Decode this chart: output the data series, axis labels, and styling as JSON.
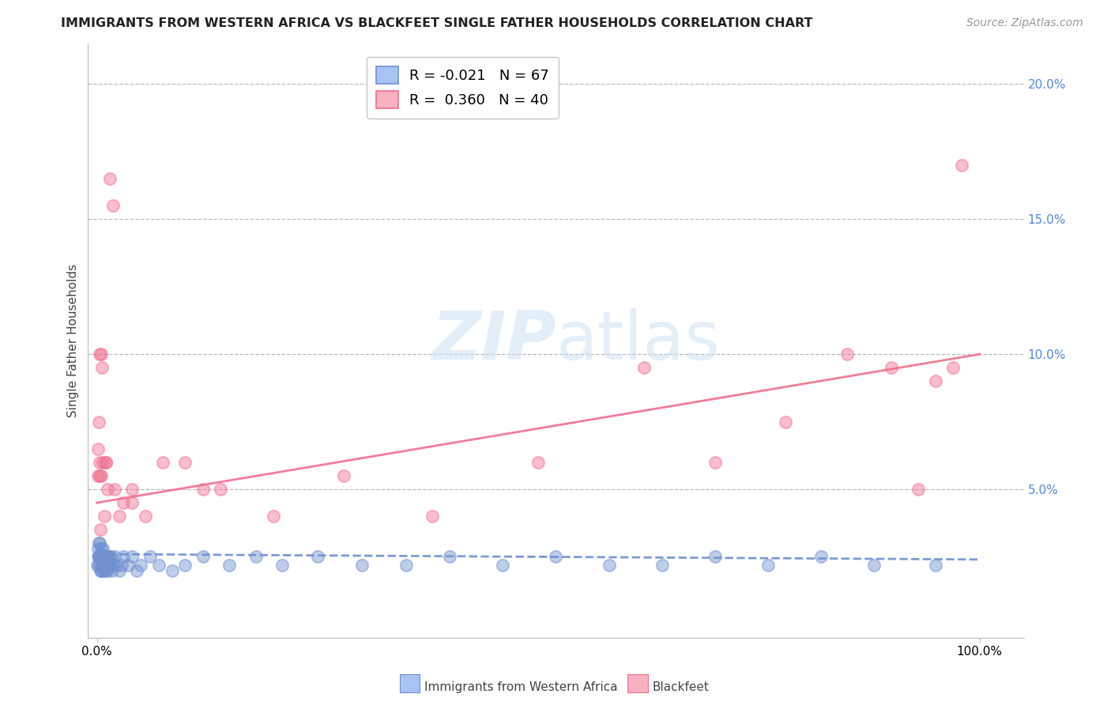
{
  "title": "IMMIGRANTS FROM WESTERN AFRICA VS BLACKFEET SINGLE FATHER HOUSEHOLDS CORRELATION CHART",
  "source": "Source: ZipAtlas.com",
  "ylabel": "Single Father Households",
  "blue_color": "#7090d0",
  "pink_color": "#f07090",
  "blue_scatter_x": [
    0.0005,
    0.001,
    0.0015,
    0.002,
    0.002,
    0.0025,
    0.003,
    0.003,
    0.0035,
    0.004,
    0.004,
    0.0045,
    0.005,
    0.005,
    0.005,
    0.006,
    0.006,
    0.006,
    0.007,
    0.007,
    0.007,
    0.008,
    0.008,
    0.009,
    0.009,
    0.01,
    0.01,
    0.011,
    0.011,
    0.012,
    0.012,
    0.013,
    0.014,
    0.015,
    0.016,
    0.017,
    0.018,
    0.02,
    0.022,
    0.025,
    0.028,
    0.03,
    0.035,
    0.04,
    0.045,
    0.05,
    0.06,
    0.07,
    0.085,
    0.1,
    0.12,
    0.15,
    0.18,
    0.21,
    0.25,
    0.3,
    0.35,
    0.4,
    0.46,
    0.52,
    0.58,
    0.64,
    0.7,
    0.76,
    0.82,
    0.88,
    0.95
  ],
  "blue_scatter_y": [
    0.022,
    0.025,
    0.028,
    0.03,
    0.022,
    0.025,
    0.025,
    0.03,
    0.022,
    0.025,
    0.02,
    0.025,
    0.02,
    0.025,
    0.028,
    0.022,
    0.025,
    0.02,
    0.025,
    0.022,
    0.028,
    0.02,
    0.025,
    0.022,
    0.025,
    0.02,
    0.025,
    0.022,
    0.025,
    0.02,
    0.025,
    0.022,
    0.025,
    0.022,
    0.025,
    0.02,
    0.022,
    0.025,
    0.022,
    0.02,
    0.022,
    0.025,
    0.022,
    0.025,
    0.02,
    0.022,
    0.025,
    0.022,
    0.02,
    0.022,
    0.025,
    0.022,
    0.025,
    0.022,
    0.025,
    0.022,
    0.022,
    0.025,
    0.022,
    0.025,
    0.022,
    0.022,
    0.025,
    0.022,
    0.025,
    0.022,
    0.022
  ],
  "pink_scatter_x": [
    0.001,
    0.002,
    0.003,
    0.003,
    0.004,
    0.005,
    0.006,
    0.007,
    0.008,
    0.01,
    0.012,
    0.015,
    0.018,
    0.02,
    0.025,
    0.03,
    0.04,
    0.055,
    0.075,
    0.1,
    0.14,
    0.2,
    0.28,
    0.38,
    0.5,
    0.62,
    0.7,
    0.78,
    0.85,
    0.9,
    0.93,
    0.95,
    0.97,
    0.98,
    0.001,
    0.003,
    0.005,
    0.01,
    0.04,
    0.12
  ],
  "pink_scatter_y": [
    0.065,
    0.075,
    0.1,
    0.055,
    0.035,
    0.055,
    0.095,
    0.06,
    0.04,
    0.06,
    0.05,
    0.165,
    0.155,
    0.05,
    0.04,
    0.045,
    0.05,
    0.04,
    0.06,
    0.06,
    0.05,
    0.04,
    0.055,
    0.04,
    0.06,
    0.095,
    0.06,
    0.075,
    0.1,
    0.095,
    0.05,
    0.09,
    0.095,
    0.17,
    0.055,
    0.06,
    0.1,
    0.06,
    0.045,
    0.05
  ],
  "blue_trend_x": [
    0.0,
    1.0
  ],
  "blue_trend_y": [
    0.026,
    0.024
  ],
  "pink_trend_x": [
    0.0,
    1.0
  ],
  "pink_trend_y": [
    0.045,
    0.1
  ],
  "yticks": [
    0.05,
    0.1,
    0.15,
    0.2
  ],
  "ytick_labels": [
    "5.0%",
    "10.0%",
    "15.0%",
    "20.0%"
  ],
  "ymax": 0.215,
  "ymin": -0.005,
  "xmax": 1.05,
  "xmin": -0.01,
  "background_color": "#ffffff",
  "grid_color": "#bbbbbb",
  "title_fontsize": 11.5,
  "source_fontsize": 10,
  "tick_fontsize": 11,
  "ylabel_fontsize": 11
}
